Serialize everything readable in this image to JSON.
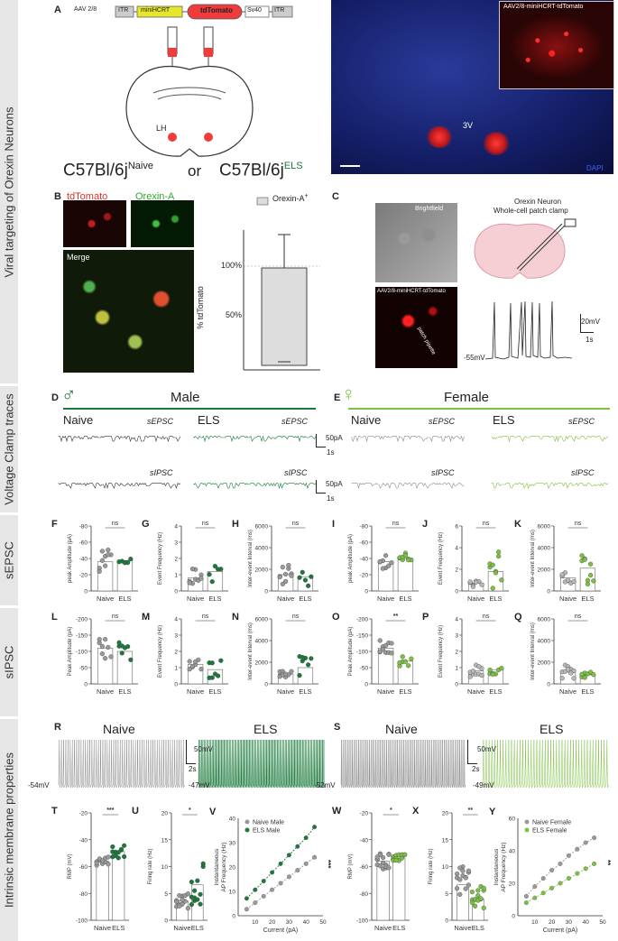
{
  "side_labels": [
    "Viral targeting of Orexin Neurons",
    "Voltage Clamp traces",
    "sEPSC",
    "sIPSC",
    "Intrinsic membrane properties"
  ],
  "panelA": {
    "letter": "A",
    "aav": "AAV 2/8",
    "itr": "ITR",
    "minihcrt": "miniHCRT",
    "tdtomato": "tdTomato",
    "sv40": "Sv40",
    "lh": "LH",
    "strain_left": "C57Bl/6j",
    "sup_left": "Naive",
    "or": "or",
    "strain_right": "C57Bl/6j",
    "sup_right": "ELS",
    "img_inset": "AAV2/8-miniHCRT-tdTomato",
    "img_3v": "3V",
    "img_dapi": "DAPI"
  },
  "panelB": {
    "letter": "B",
    "tdtomato": "tdTomato",
    "orexin": "Orexin-A",
    "merge": "Merge",
    "legend": "Orexin-A",
    "legend_sup": "+",
    "ylabel": "% tdTomato",
    "ticks": [
      "100%",
      "50%"
    ]
  },
  "panelC": {
    "letter": "C",
    "brightfield": "Brightfield",
    "aav": "AAV2/8-miniHCRT-tdTomato",
    "pipette": "patch pipette",
    "title1": "Orexin Neuron",
    "title2": "Whole-cell patch clamp",
    "v": "-55mV",
    "sb_mv": "20mV",
    "sb_s": "1s"
  },
  "panelD": {
    "letter": "D",
    "sex": "♂",
    "title": "Male",
    "naive": "Naive",
    "els": "ELS",
    "sepsc": "sEPSC",
    "sipsc": "sIPSC",
    "sb1": "50pA",
    "sb1s": "1s",
    "sb2": "50pA",
    "sb2s": "1s"
  },
  "panelE": {
    "letter": "E",
    "sex": "♀",
    "title": "Female",
    "naive": "Naive",
    "els": "ELS",
    "sepsc": "sEPSC",
    "sipsc": "sIPSC"
  },
  "colors": {
    "male": "#1a7a3c",
    "female": "#7cc242",
    "naive": "#8c8c8c",
    "dark": "#333333"
  },
  "plots": {
    "F": {
      "letter": "F",
      "ylabel": "peak Amplitude (pA)",
      "ticks": [
        "-80",
        "-60",
        "-40",
        "-20",
        "0"
      ],
      "x": [
        "Naive",
        "ELS"
      ],
      "sig": "ns"
    },
    "G": {
      "letter": "G",
      "ylabel": "Event Frequency (Hz)",
      "ticks": [
        "4",
        "3",
        "2",
        "1",
        "0"
      ],
      "x": [
        "Naive",
        "ELS"
      ],
      "sig": "ns"
    },
    "H": {
      "letter": "H",
      "ylabel": "Inter-event Interval (ms)",
      "ticks": [
        "6000",
        "4000",
        "2000",
        "0"
      ],
      "x": [
        "Naive",
        "ELS"
      ],
      "sig": "ns"
    },
    "I": {
      "letter": "I",
      "ylabel": "peak Amplitude (pA)",
      "ticks": [
        "-80",
        "-60",
        "-40",
        "-20",
        "0"
      ],
      "x": [
        "Naive",
        "ELS"
      ],
      "sig": "ns"
    },
    "J": {
      "letter": "J",
      "ylabel": "Event Frequency (Hz)",
      "ticks": [
        "6",
        "4",
        "2",
        "0"
      ],
      "x": [
        "Naive",
        "ELS"
      ],
      "sig": "ns"
    },
    "K": {
      "letter": "K",
      "ylabel": "Inter-event Interval (ms)",
      "ticks": [
        "6000",
        "4000",
        "2000",
        "0"
      ],
      "x": [
        "Naive",
        "ELS"
      ],
      "sig": "ns"
    },
    "L": {
      "letter": "L",
      "ylabel": "Peak Amplitude (pA)",
      "ticks": [
        "-200",
        "-150",
        "-100",
        "-50",
        "0"
      ],
      "x": [
        "Naive",
        "ELS"
      ],
      "sig": "ns"
    },
    "M": {
      "letter": "M",
      "ylabel": "Event Frequency (Hz)",
      "ticks": [
        "4",
        "3",
        "2",
        "1",
        "0"
      ],
      "x": [
        "Naive",
        "ELS"
      ],
      "sig": "ns"
    },
    "N": {
      "letter": "N",
      "ylabel": "Inter-event Interval (ms)",
      "ticks": [
        "6000",
        "4000",
        "2000",
        "0"
      ],
      "x": [
        "Naive",
        "ELS"
      ],
      "sig": "ns"
    },
    "O": {
      "letter": "O",
      "ylabel": "Peak Amplitude (pA)",
      "ticks": [
        "-200",
        "-150",
        "-100",
        "-50",
        "0"
      ],
      "x": [
        "Naive",
        "ELS"
      ],
      "sig": "**"
    },
    "P": {
      "letter": "P",
      "ylabel": "Event Frequency (Hz)",
      "ticks": [
        "4",
        "3",
        "2",
        "1",
        "0"
      ],
      "x": [
        "Naive",
        "ELS"
      ],
      "sig": "ns"
    },
    "Q": {
      "letter": "Q",
      "ylabel": "Inter-event Interval (ms)",
      "ticks": [
        "6000",
        "4000",
        "2000",
        "0"
      ],
      "x": [
        "Naive",
        "ELS"
      ],
      "sig": "ns"
    }
  },
  "panelR": {
    "letter": "R",
    "naive": "Naive",
    "els": "ELS",
    "v1": "-54mV",
    "v2": "-47mV",
    "sb_mv": "50mV",
    "sb_s": "2s"
  },
  "panelS": {
    "letter": "S",
    "naive": "Naive",
    "els": "ELS",
    "v1": "-52mV",
    "v2": "-49mV",
    "sb_mv": "50mV",
    "sb_s": "2s"
  },
  "panelT": {
    "letter": "T",
    "ylabel": "RMP (mV)",
    "ticks": [
      "-20",
      "-40",
      "-60",
      "-80",
      "-100"
    ],
    "x": [
      "Naive",
      "ELS"
    ],
    "sig": "***"
  },
  "panelU": {
    "letter": "U",
    "ylabel": "Firing rate (Hz)",
    "ticks": [
      "20",
      "15",
      "10",
      "5",
      "0"
    ],
    "x": [
      "Naive",
      "ELS"
    ],
    "sig": "*"
  },
  "panelV": {
    "letter": "V",
    "ylabel1": "Instantaneous",
    "ylabel2": "AP Frequency (Hz)",
    "xlabel": "Current (pA)",
    "legend": [
      "Naive Male",
      "ELS Male"
    ],
    "yticks": [
      "40",
      "30",
      "20",
      "10",
      "0"
    ],
    "xticks": [
      "10",
      "20",
      "30",
      "40",
      "50"
    ],
    "sig": "***"
  },
  "panelW": {
    "letter": "W",
    "ylabel": "RMP (mV)",
    "ticks": [
      "-20",
      "-40",
      "-60",
      "-80",
      "-100"
    ],
    "x": [
      "Naive",
      "ELS"
    ],
    "sig": "*"
  },
  "panelX": {
    "letter": "X",
    "ylabel": "Firing rate (Hz)",
    "ticks": [
      "20",
      "15",
      "10",
      "5",
      "0"
    ],
    "x": [
      "Naive",
      "ELS"
    ],
    "sig": "**"
  },
  "panelY": {
    "letter": "Y",
    "ylabel1": "Instantaneous",
    "ylabel2": "AP Frequency (Hz)",
    "xlabel": "Current (pA)",
    "legend": [
      "Naive Female",
      "ELS Female"
    ],
    "yticks": [
      "60",
      "40",
      "20",
      "0"
    ],
    "xticks": [
      "10",
      "20",
      "30",
      "40",
      "50"
    ],
    "sig": "**"
  },
  "chart_data": [
    {
      "type": "line",
      "title": "",
      "xlabel": "Current (pA)",
      "ylabel": "Instantaneous AP Frequency (Hz)",
      "x": [
        5,
        10,
        15,
        20,
        25,
        30,
        35,
        40,
        45
      ],
      "series": [
        {
          "name": "Naive Male",
          "values": [
            3,
            6,
            9,
            12,
            15,
            18,
            21,
            24,
            27
          ]
        },
        {
          "name": "ELS Male",
          "values": [
            8,
            12,
            16,
            20,
            24,
            28,
            32,
            36,
            41
          ]
        }
      ],
      "xlim": [
        0,
        50
      ],
      "ylim": [
        0,
        45
      ]
    },
    {
      "type": "line",
      "title": "",
      "xlabel": "Current (pA)",
      "ylabel": "Instantaneous AP Frequency (Hz)",
      "x": [
        5,
        10,
        15,
        20,
        25,
        30,
        35,
        40,
        45
      ],
      "series": [
        {
          "name": "Naive Female",
          "values": [
            12,
            18,
            23,
            28,
            32,
            37,
            41,
            45,
            48
          ]
        },
        {
          "name": "ELS Female",
          "values": [
            8,
            11,
            14,
            17,
            20,
            23,
            26,
            29,
            32
          ]
        }
      ],
      "xlim": [
        0,
        50
      ],
      "ylim": [
        0,
        60
      ]
    }
  ]
}
